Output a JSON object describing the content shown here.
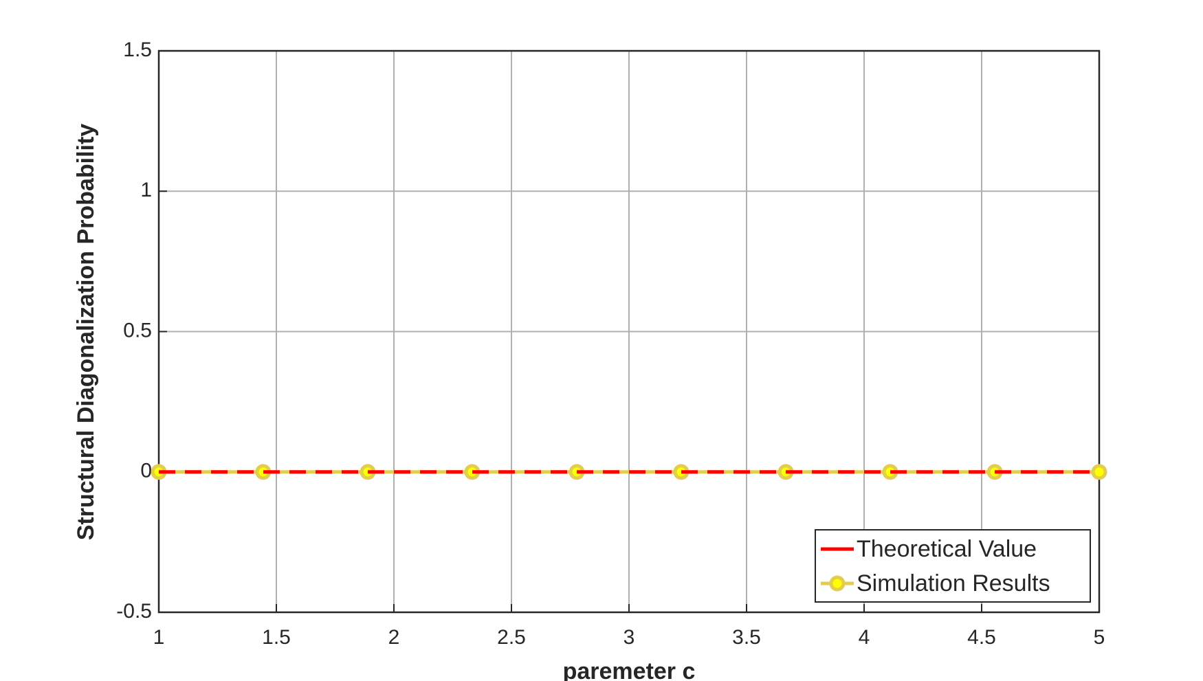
{
  "chart_data": {
    "type": "line",
    "xlabel": "paremeter c",
    "ylabel": "Structural Diagonalization Probability",
    "x": [
      1,
      1.444,
      1.889,
      2.333,
      2.778,
      3.222,
      3.667,
      4.111,
      4.556,
      5
    ],
    "series": [
      {
        "name": "Theoretical Value",
        "color": "#ff0000",
        "linestyle": "dashed",
        "marker": "none",
        "values": [
          0,
          0,
          0,
          0,
          0,
          0,
          0,
          0,
          0,
          0
        ]
      },
      {
        "name": "Simulation Results",
        "color": "#e2cd4e",
        "marker_fill": "#ffff00",
        "linestyle": "solid",
        "marker": "o",
        "values": [
          0,
          0,
          0,
          0,
          0,
          0,
          0,
          0,
          0,
          0
        ]
      }
    ],
    "xlim": [
      1,
      5
    ],
    "xticks": [
      1,
      1.5,
      2,
      2.5,
      3,
      3.5,
      4,
      4.5,
      5
    ],
    "ylim": [
      -0.5,
      1.5
    ],
    "yticks": [
      -0.5,
      0,
      0.5,
      1,
      1.5
    ],
    "grid": true,
    "legend": "lower right"
  }
}
